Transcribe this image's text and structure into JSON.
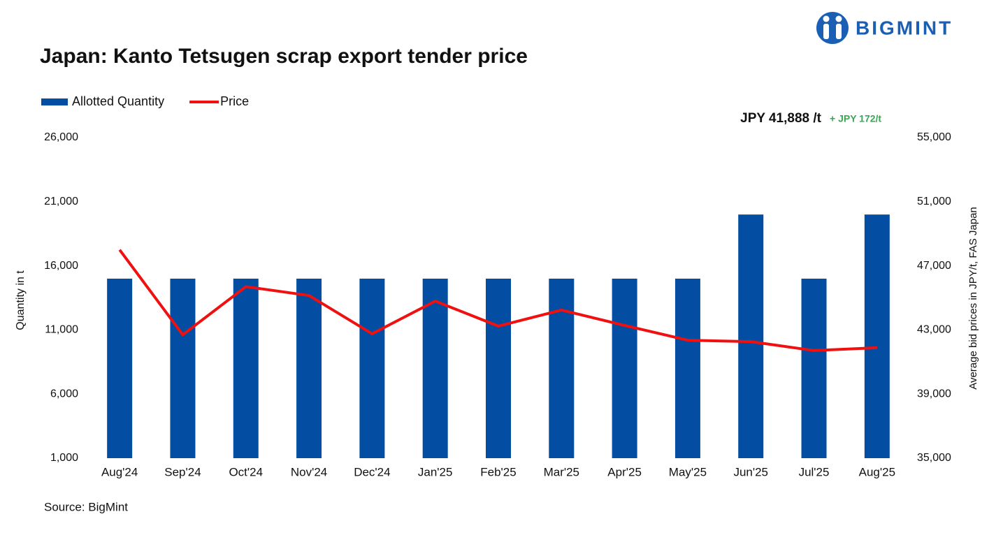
{
  "brand": "BIGMINT",
  "chart_data": {
    "type": "bar-line",
    "title": "Japan: Kanto Tetsugen scrap export tender price",
    "source": "Source: BigMint",
    "annotation": "JPY 41,888 /t",
    "annotation_change": "+ JPY 172/t",
    "ylabel": "Quantity in t",
    "y2label": "Average bid prices in JPY/t, FAS Japan",
    "categories": [
      "Aug'24",
      "Sep'24",
      "Oct'24",
      "Nov'24",
      "Dec'24",
      "Jan'25",
      "Feb'25",
      "Mar'25",
      "Apr'25",
      "May'25",
      "Jun'25",
      "Jul'25",
      "Aug'25"
    ],
    "series": [
      {
        "name": "Allotted Quantity",
        "type": "bar",
        "color": "#034ea2",
        "axis": "y",
        "values": [
          15000,
          15000,
          15000,
          15000,
          15000,
          15000,
          15000,
          15000,
          15000,
          15000,
          20000,
          15000,
          20000
        ]
      },
      {
        "name": "Price",
        "type": "line",
        "color": "#f01010",
        "axis": "y2",
        "values": [
          48000,
          42700,
          45700,
          45150,
          42760,
          44800,
          43240,
          44240,
          43280,
          42360,
          42270,
          41716,
          41888
        ]
      }
    ],
    "ylim": [
      1000,
      26000
    ],
    "yticks": [
      {
        "value": 1000,
        "label": "1,000"
      },
      {
        "value": 6000,
        "label": "6,000"
      },
      {
        "value": 11000,
        "label": "11,000"
      },
      {
        "value": 16000,
        "label": "16,000"
      },
      {
        "value": 21000,
        "label": "21,000"
      },
      {
        "value": 26000,
        "label": "26,000"
      }
    ],
    "y2lim": [
      35000,
      55000
    ],
    "y2ticks": [
      {
        "value": 35000,
        "label": "35,000"
      },
      {
        "value": 39000,
        "label": "39,000"
      },
      {
        "value": 43000,
        "label": "43,000"
      },
      {
        "value": 47000,
        "label": "47,000"
      },
      {
        "value": 51000,
        "label": "51,000"
      },
      {
        "value": 55000,
        "label": "55,000"
      }
    ],
    "grid": false,
    "legend": "top-left"
  }
}
